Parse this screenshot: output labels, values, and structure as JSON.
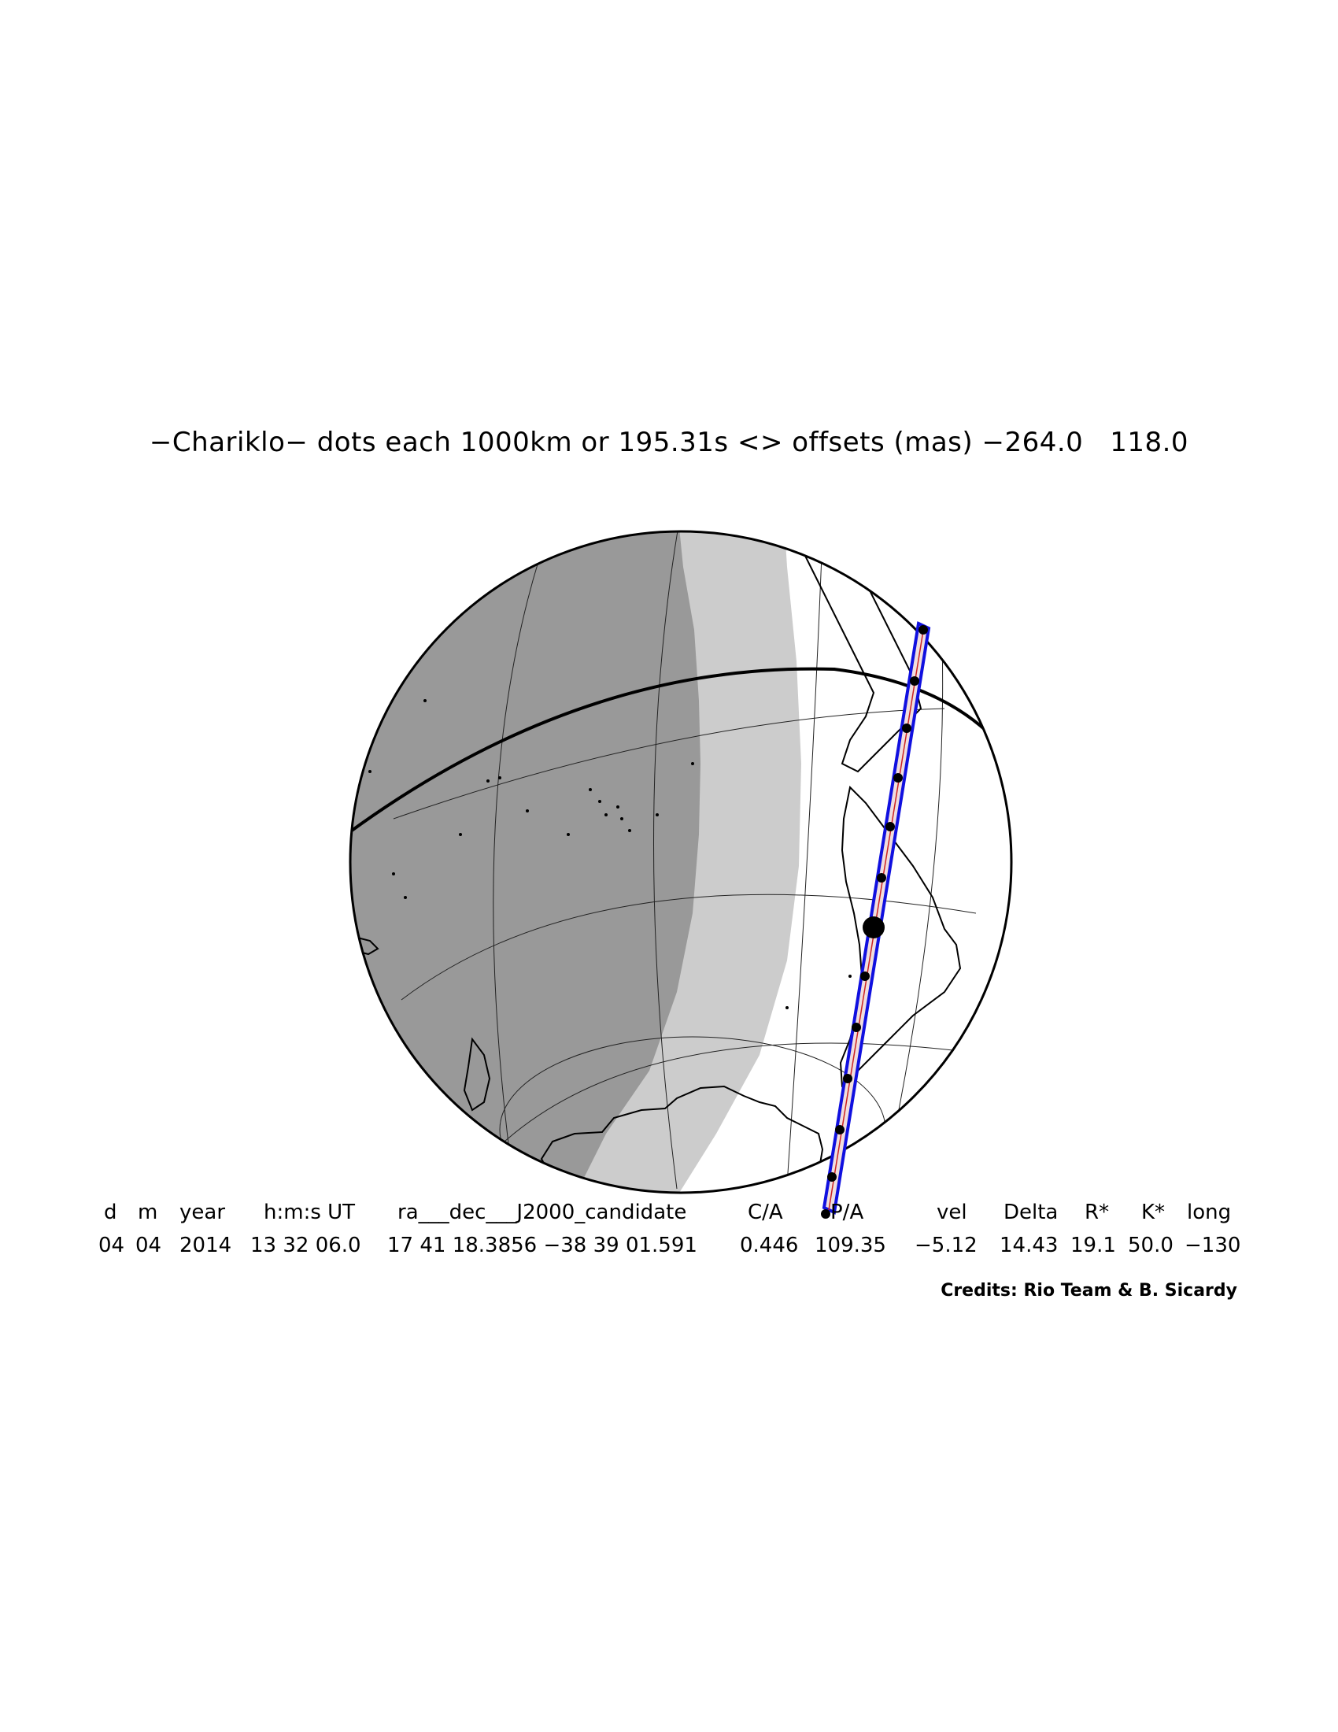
{
  "title": "−Chariklo− dots each 1000km or 195.31s <> offsets (mas) −264.0   118.0",
  "table": {
    "headers": [
      "d",
      "m",
      "year",
      "h:m:s UT",
      "ra___dec___J2000_candidate",
      "C/A",
      "P/A",
      "vel",
      "Delta",
      "R*",
      "K*",
      "long"
    ],
    "values": [
      "04",
      "04",
      "2014",
      "13 32 06.0",
      "17 41 18.3856 −38 39 01.591",
      "0.446",
      "109.35",
      "−5.12",
      "14.43",
      "19.1",
      "50.0",
      "−130"
    ]
  },
  "credits": "Credits: Rio Team & B. Sicardy",
  "colors": {
    "night": "#999999",
    "twilight": "#cccccc",
    "day": "#ffffff",
    "shadow_path": "#1010e0"
  }
}
